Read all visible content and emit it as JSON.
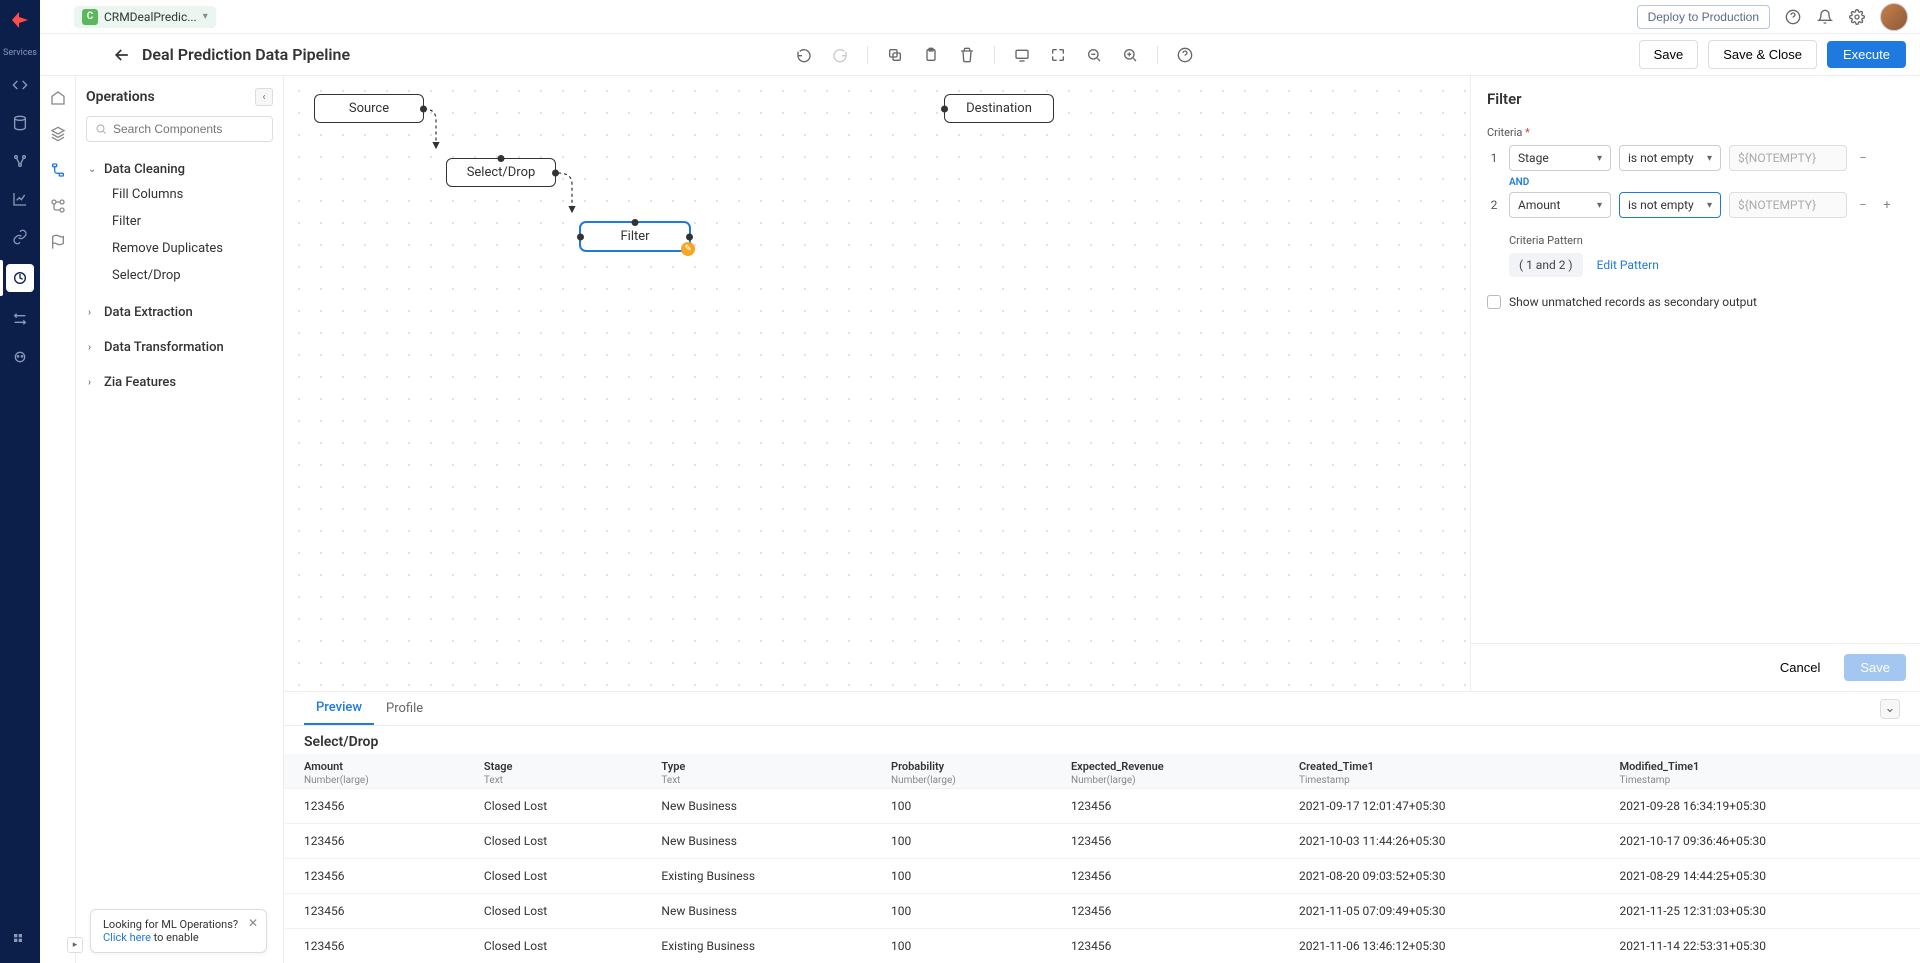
{
  "topbar": {
    "app_badge": "C",
    "app_name": "CRMDealPredic...",
    "deploy_label": "Deploy to Production"
  },
  "header": {
    "title": "Deal Prediction Data Pipeline",
    "save_label": "Save",
    "save_close_label": "Save & Close",
    "execute_label": "Execute"
  },
  "left_rail_label": "Services",
  "sidebar": {
    "title": "Operations",
    "search_placeholder": "Search Components",
    "groups": [
      {
        "label": "Data Cleaning",
        "expanded": true,
        "items": [
          "Fill Columns",
          "Filter",
          "Remove Duplicates",
          "Select/Drop"
        ]
      },
      {
        "label": "Data Extraction",
        "expanded": false,
        "items": []
      },
      {
        "label": "Data Transformation",
        "expanded": false,
        "items": []
      },
      {
        "label": "Zia Features",
        "expanded": false,
        "items": []
      }
    ]
  },
  "nodes": {
    "source": "Source",
    "selectdrop": "Select/Drop",
    "filter": "Filter",
    "destination": "Destination"
  },
  "panel": {
    "title": "Filter",
    "criteria_label": "Criteria",
    "and_label": "AND",
    "rows": [
      {
        "n": "1",
        "field": "Stage",
        "op": "is not empty",
        "val": "${NOTEMPTY}"
      },
      {
        "n": "2",
        "field": "Amount",
        "op": "is not empty",
        "val": "${NOTEMPTY}"
      }
    ],
    "pattern_label": "Criteria Pattern",
    "pattern_text": "( 1 and 2 )",
    "edit_pattern": "Edit Pattern",
    "checkbox_label": "Show unmatched records as secondary output",
    "cancel": "Cancel",
    "save": "Save"
  },
  "preview": {
    "tabs": [
      "Preview",
      "Profile"
    ],
    "title": "Select/Drop",
    "columns": [
      {
        "name": "Amount",
        "type": "Number(large)"
      },
      {
        "name": "Stage",
        "type": "Text"
      },
      {
        "name": "Type",
        "type": "Text"
      },
      {
        "name": "Probability",
        "type": "Number(large)"
      },
      {
        "name": "Expected_Revenue",
        "type": "Number(large)"
      },
      {
        "name": "Created_Time1",
        "type": "Timestamp"
      },
      {
        "name": "Modified_Time1",
        "type": "Timestamp"
      }
    ],
    "rows": [
      [
        "123456",
        "Closed Lost",
        "New Business",
        "100",
        "123456",
        "2021-09-17 12:01:47+05:30",
        "2021-09-28 16:34:19+05:30"
      ],
      [
        "123456",
        "Closed Lost",
        "New Business",
        "100",
        "123456",
        "2021-10-03 11:44:26+05:30",
        "2021-10-17 09:36:46+05:30"
      ],
      [
        "123456",
        "Closed Lost",
        "Existing Business",
        "100",
        "123456",
        "2021-08-20 09:03:52+05:30",
        "2021-08-29 14:44:25+05:30"
      ],
      [
        "123456",
        "Closed Lost",
        "New Business",
        "100",
        "123456",
        "2021-11-05 07:09:49+05:30",
        "2021-11-25 12:31:03+05:30"
      ],
      [
        "123456",
        "Closed Lost",
        "Existing Business",
        "100",
        "123456",
        "2021-11-06 13:46:12+05:30",
        "2021-11-14 22:53:31+05:30"
      ]
    ]
  },
  "hint": {
    "line1": "Looking for ML Operations?",
    "link": "Click here",
    "line2": " to enable"
  }
}
